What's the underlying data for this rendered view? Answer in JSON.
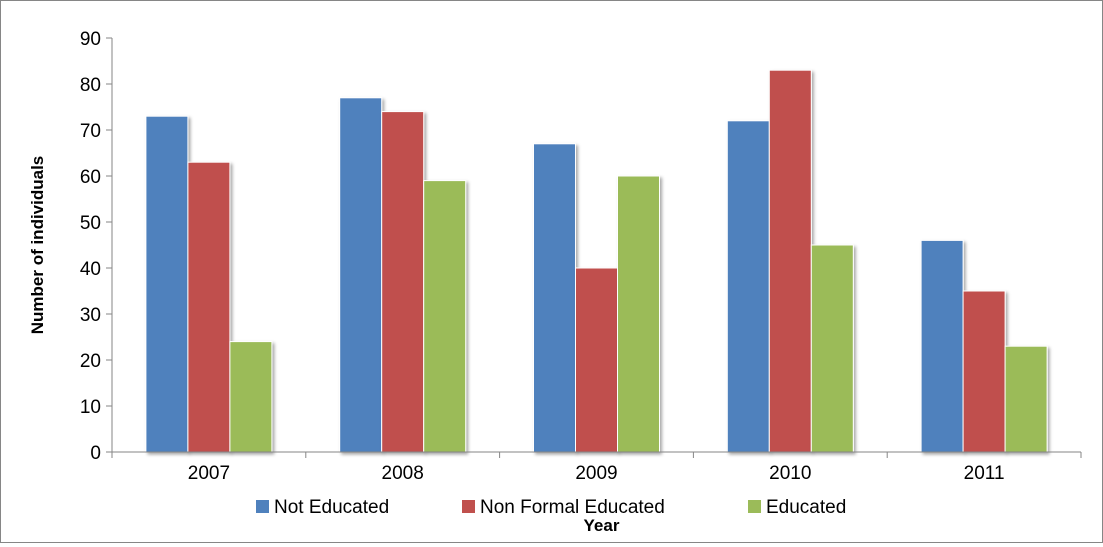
{
  "chart_data": {
    "type": "bar",
    "title": "",
    "xlabel": "Year",
    "ylabel": "Number of individuals",
    "categories": [
      "2007",
      "2008",
      "2009",
      "2010",
      "2011"
    ],
    "series": [
      {
        "name": "Not Educated",
        "color": "#4F81BD",
        "values": [
          73,
          77,
          67,
          72,
          46
        ]
      },
      {
        "name": "Non Formal Educated",
        "color": "#C0504D",
        "values": [
          63,
          74,
          40,
          83,
          35
        ]
      },
      {
        "name": "Educated",
        "color": "#9BBB59",
        "values": [
          24,
          59,
          60,
          45,
          23
        ]
      }
    ],
    "ylim": [
      0,
      90
    ],
    "yticks": [
      "0",
      "10",
      "20",
      "30",
      "40",
      "50",
      "60",
      "70",
      "80",
      "90"
    ],
    "grid": false,
    "legend_position": "bottom"
  }
}
